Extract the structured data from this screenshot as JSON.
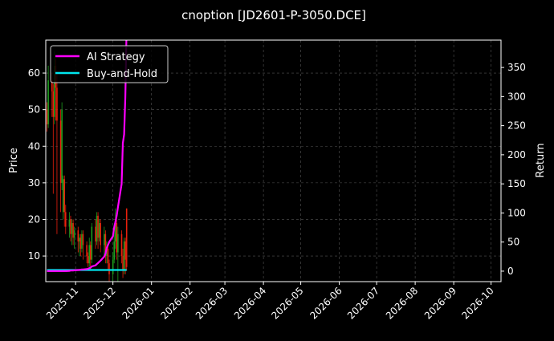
{
  "chart_data": {
    "type": "candlestick+line",
    "title": "cnoption [JD2601-P-3050.DCE]",
    "ylabel_left": "Price",
    "ylabel_right": "Return",
    "xlim": [
      "2025-10-08",
      "2026-10-09"
    ],
    "ylim_left": [
      3,
      69
    ],
    "ylim_right": [
      -18,
      397
    ],
    "x_ticks": [
      "2025-11",
      "2025-12",
      "2026-01",
      "2026-02",
      "2026-03",
      "2026-04",
      "2026-05",
      "2026-06",
      "2026-07",
      "2026-08",
      "2026-09",
      "2026-10"
    ],
    "y_ticks_left": [
      10,
      20,
      30,
      40,
      50,
      60
    ],
    "y_ticks_right": [
      0,
      50,
      100,
      150,
      200,
      250,
      300,
      350
    ],
    "grid": true,
    "legend_placement": "top-left",
    "colors": {
      "up": "#1e9e1e",
      "down": "#e8200c",
      "strategy": "#ff00ff",
      "hold": "#00e5ee",
      "grid": "#555555",
      "background": "#000000"
    },
    "dates": [
      "2025-10-09",
      "2025-10-10",
      "2025-10-13",
      "2025-10-14",
      "2025-10-15",
      "2025-10-16",
      "2025-10-17",
      "2025-10-20",
      "2025-10-21",
      "2025-10-22",
      "2025-10-23",
      "2025-10-24",
      "2025-10-27",
      "2025-10-28",
      "2025-10-29",
      "2025-10-30",
      "2025-10-31",
      "2025-11-03",
      "2025-11-04",
      "2025-11-05",
      "2025-11-06",
      "2025-11-07",
      "2025-11-10",
      "2025-11-11",
      "2025-11-12",
      "2025-11-13",
      "2025-11-14",
      "2025-11-17",
      "2025-11-18",
      "2025-11-19",
      "2025-11-20",
      "2025-11-21",
      "2025-11-24",
      "2025-11-25",
      "2025-11-26",
      "2025-11-27",
      "2025-11-28",
      "2025-12-01",
      "2025-12-02",
      "2025-12-03",
      "2025-12-04",
      "2025-12-05",
      "2025-12-08",
      "2025-12-09",
      "2025-12-10",
      "2025-12-11",
      "2025-12-12"
    ],
    "open": [
      50,
      46,
      58,
      55,
      48,
      62,
      56,
      47,
      30,
      22,
      31,
      22,
      18,
      20,
      16,
      19,
      15,
      17,
      14,
      15,
      12,
      16,
      13,
      10,
      8,
      13,
      9,
      18,
      14,
      21,
      15,
      19,
      13,
      16,
      10,
      12,
      8,
      5,
      9,
      14,
      19,
      11,
      16,
      10,
      6,
      14,
      23
    ],
    "high": [
      52,
      62,
      60,
      57,
      66,
      64,
      60,
      50,
      52,
      32,
      32,
      24,
      22,
      21,
      20,
      20,
      18,
      18,
      16,
      16,
      17,
      17,
      14,
      11,
      15,
      14,
      19,
      20,
      22,
      22,
      20,
      20,
      18,
      17,
      14,
      13,
      9,
      11,
      17,
      23,
      20,
      18,
      17,
      12,
      15,
      15,
      23
    ],
    "low": [
      44,
      45,
      48,
      27,
      46,
      47,
      16,
      22,
      28,
      20,
      18,
      16,
      15,
      14,
      13,
      13,
      12,
      11,
      10,
      10,
      11,
      9,
      8,
      7,
      7,
      6,
      8,
      12,
      13,
      12,
      14,
      11,
      10,
      8,
      8,
      6,
      3,
      3,
      8,
      12,
      9,
      3,
      8,
      4,
      5,
      5,
      6
    ],
    "close": [
      46,
      58,
      55,
      48,
      62,
      56,
      47,
      30,
      50,
      31,
      22,
      18,
      20,
      16,
      19,
      15,
      17,
      14,
      15,
      12,
      16,
      13,
      10,
      8,
      13,
      9,
      18,
      14,
      21,
      15,
      19,
      13,
      16,
      10,
      12,
      8,
      5,
      9,
      14,
      19,
      11,
      16,
      10,
      6,
      14,
      9,
      7
    ],
    "series": [
      {
        "name": "AI Strategy",
        "values": [
          0,
          0,
          0,
          0,
          0,
          0,
          0,
          0,
          0,
          0,
          0,
          0,
          0.5,
          1,
          1,
          1,
          1.5,
          2,
          2,
          2.5,
          3,
          3,
          3.5,
          4,
          5,
          6,
          8,
          10,
          12,
          14,
          16,
          18,
          25,
          30,
          40,
          45,
          50,
          60,
          75,
          85,
          95,
          110,
          150,
          220,
          235,
          300,
          420
        ]
      },
      {
        "name": "Buy-and-Hold",
        "values": [
          2,
          2,
          2,
          2,
          2,
          2,
          2,
          2,
          2,
          2,
          2,
          2,
          2,
          2,
          2,
          2,
          2,
          2,
          2,
          2,
          2,
          2,
          2,
          2,
          2,
          2,
          2,
          2,
          2,
          2,
          2,
          2,
          2,
          2,
          2,
          2,
          2,
          2,
          2,
          2,
          2,
          2,
          2,
          2,
          2,
          2,
          2
        ]
      }
    ]
  }
}
